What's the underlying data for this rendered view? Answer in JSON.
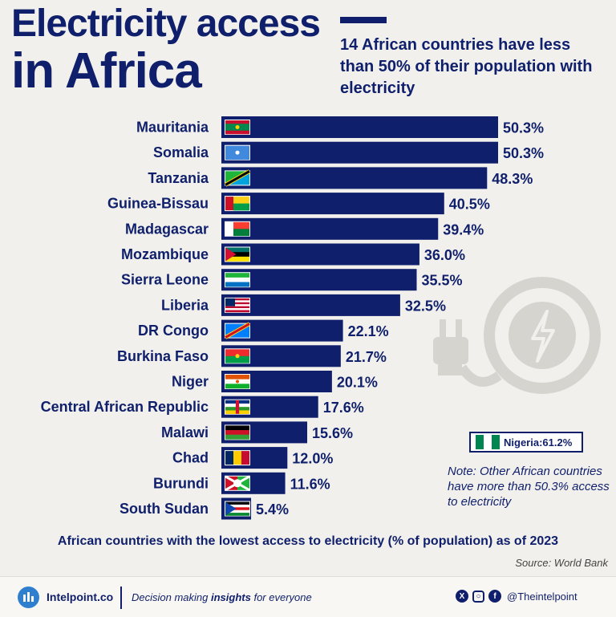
{
  "title": {
    "line1": "Electricity access",
    "line2": "in Africa"
  },
  "subtitle": "14 African countries have less than 50% of their population with electricity",
  "chart_data": {
    "type": "bar",
    "orientation": "horizontal",
    "unit": "%",
    "categories": [
      "Mauritania",
      "Somalia",
      "Tanzania",
      "Guinea-Bissau",
      "Madagascar",
      "Mozambique",
      "Sierra Leone",
      "Liberia",
      "DR Congo",
      "Burkina Faso",
      "Niger",
      "Central African Republic",
      "Malawi",
      "Chad",
      "Burundi",
      "South Sudan"
    ],
    "values": [
      50.3,
      50.3,
      48.3,
      40.5,
      39.4,
      36.0,
      35.5,
      32.5,
      22.1,
      21.7,
      20.1,
      17.6,
      15.6,
      12.0,
      11.6,
      5.4
    ],
    "value_labels": [
      "50.3%",
      "50.3%",
      "48.3%",
      "40.5%",
      "39.4%",
      "36.0%",
      "35.5%",
      "32.5%",
      "22.1%",
      "21.7%",
      "20.1%",
      "17.6%",
      "15.6%",
      "12.0%",
      "11.6%",
      "5.4%"
    ],
    "xlim": [
      0,
      50.3
    ],
    "bar_color": "#0f1f6b",
    "grid": false,
    "legend": "none"
  },
  "flags": [
    {
      "name": "mauritania-flag",
      "stripes": "h",
      "colors": [
        "#c8102e",
        "#00874b",
        "#00874b",
        "#c8102e"
      ],
      "star": "#ffd100"
    },
    {
      "name": "somalia-flag",
      "stripes": "h",
      "colors": [
        "#4189dd"
      ],
      "star": "#ffffff"
    },
    {
      "name": "tanzania-flag",
      "diag": true,
      "colors": [
        "#1eb53a",
        "#00a3dd"
      ]
    },
    {
      "name": "guinea-bissau-flag",
      "hoist": "#ce1126",
      "stripes": "h",
      "colors": [
        "#fcd116",
        "#009e49"
      ]
    },
    {
      "name": "madagascar-flag",
      "hoist": "#ffffff",
      "stripes": "h",
      "colors": [
        "#fc3d32",
        "#007e3a"
      ]
    },
    {
      "name": "mozambique-flag",
      "stripes": "h",
      "colors": [
        "#007168",
        "#000000",
        "#fce100"
      ],
      "tri": "#d21034"
    },
    {
      "name": "sierra-leone-flag",
      "stripes": "h",
      "colors": [
        "#1eb53a",
        "#ffffff",
        "#0072c6"
      ]
    },
    {
      "name": "liberia-flag",
      "stripes": "h",
      "colors": [
        "#bf0a30",
        "#ffffff",
        "#bf0a30",
        "#ffffff",
        "#bf0a30",
        "#ffffff",
        "#bf0a30"
      ],
      "canton": "#002868"
    },
    {
      "name": "dr-congo-flag",
      "diag": true,
      "colors": [
        "#007fff",
        "#007fff"
      ],
      "sash": "#ce1021"
    },
    {
      "name": "burkina-faso-flag",
      "stripes": "h",
      "colors": [
        "#ef2b2d",
        "#009e49"
      ],
      "star": "#fcd116"
    },
    {
      "name": "niger-flag",
      "stripes": "h",
      "colors": [
        "#e05206",
        "#ffffff",
        "#0db02b"
      ],
      "dot": "#e05206"
    },
    {
      "name": "car-flag",
      "stripes": "h",
      "colors": [
        "#003082",
        "#ffffff",
        "#289728",
        "#ffce00"
      ],
      "vband": "#d21034"
    },
    {
      "name": "malawi-flag",
      "stripes": "h",
      "colors": [
        "#000000",
        "#ce1126",
        "#339e35"
      ]
    },
    {
      "name": "chad-flag",
      "stripes": "v",
      "colors": [
        "#002664",
        "#fecb00",
        "#c60c30"
      ]
    },
    {
      "name": "burundi-flag",
      "stripes": "v",
      "colors": [
        "#ce1126",
        "#1eb53a"
      ],
      "saltire": "#ffffff"
    },
    {
      "name": "south-sudan-flag",
      "stripes": "h",
      "colors": [
        "#000000",
        "#ffffff",
        "#da121a",
        "#ffffff",
        "#078930"
      ],
      "tri": "#0f47af"
    }
  ],
  "nigeria": {
    "label": "Nigeria:",
    "value": "61.2%",
    "flag_colors": [
      "#008751",
      "#ffffff",
      "#008751"
    ]
  },
  "note": "Note: Other African countries have more than 50.3% access to electricity",
  "caption": "African countries with the lowest access to electricity (% of population) as of 2023",
  "source": "Source: World Bank",
  "footer": {
    "brand": "Intelpoint.co",
    "tagline_pre": "Decision making ",
    "tagline_bold": "insights",
    "tagline_post": " for everyone",
    "social_icons": [
      "x-icon",
      "instagram-icon",
      "facebook-icon"
    ],
    "handle": "@Theintelpoint"
  }
}
